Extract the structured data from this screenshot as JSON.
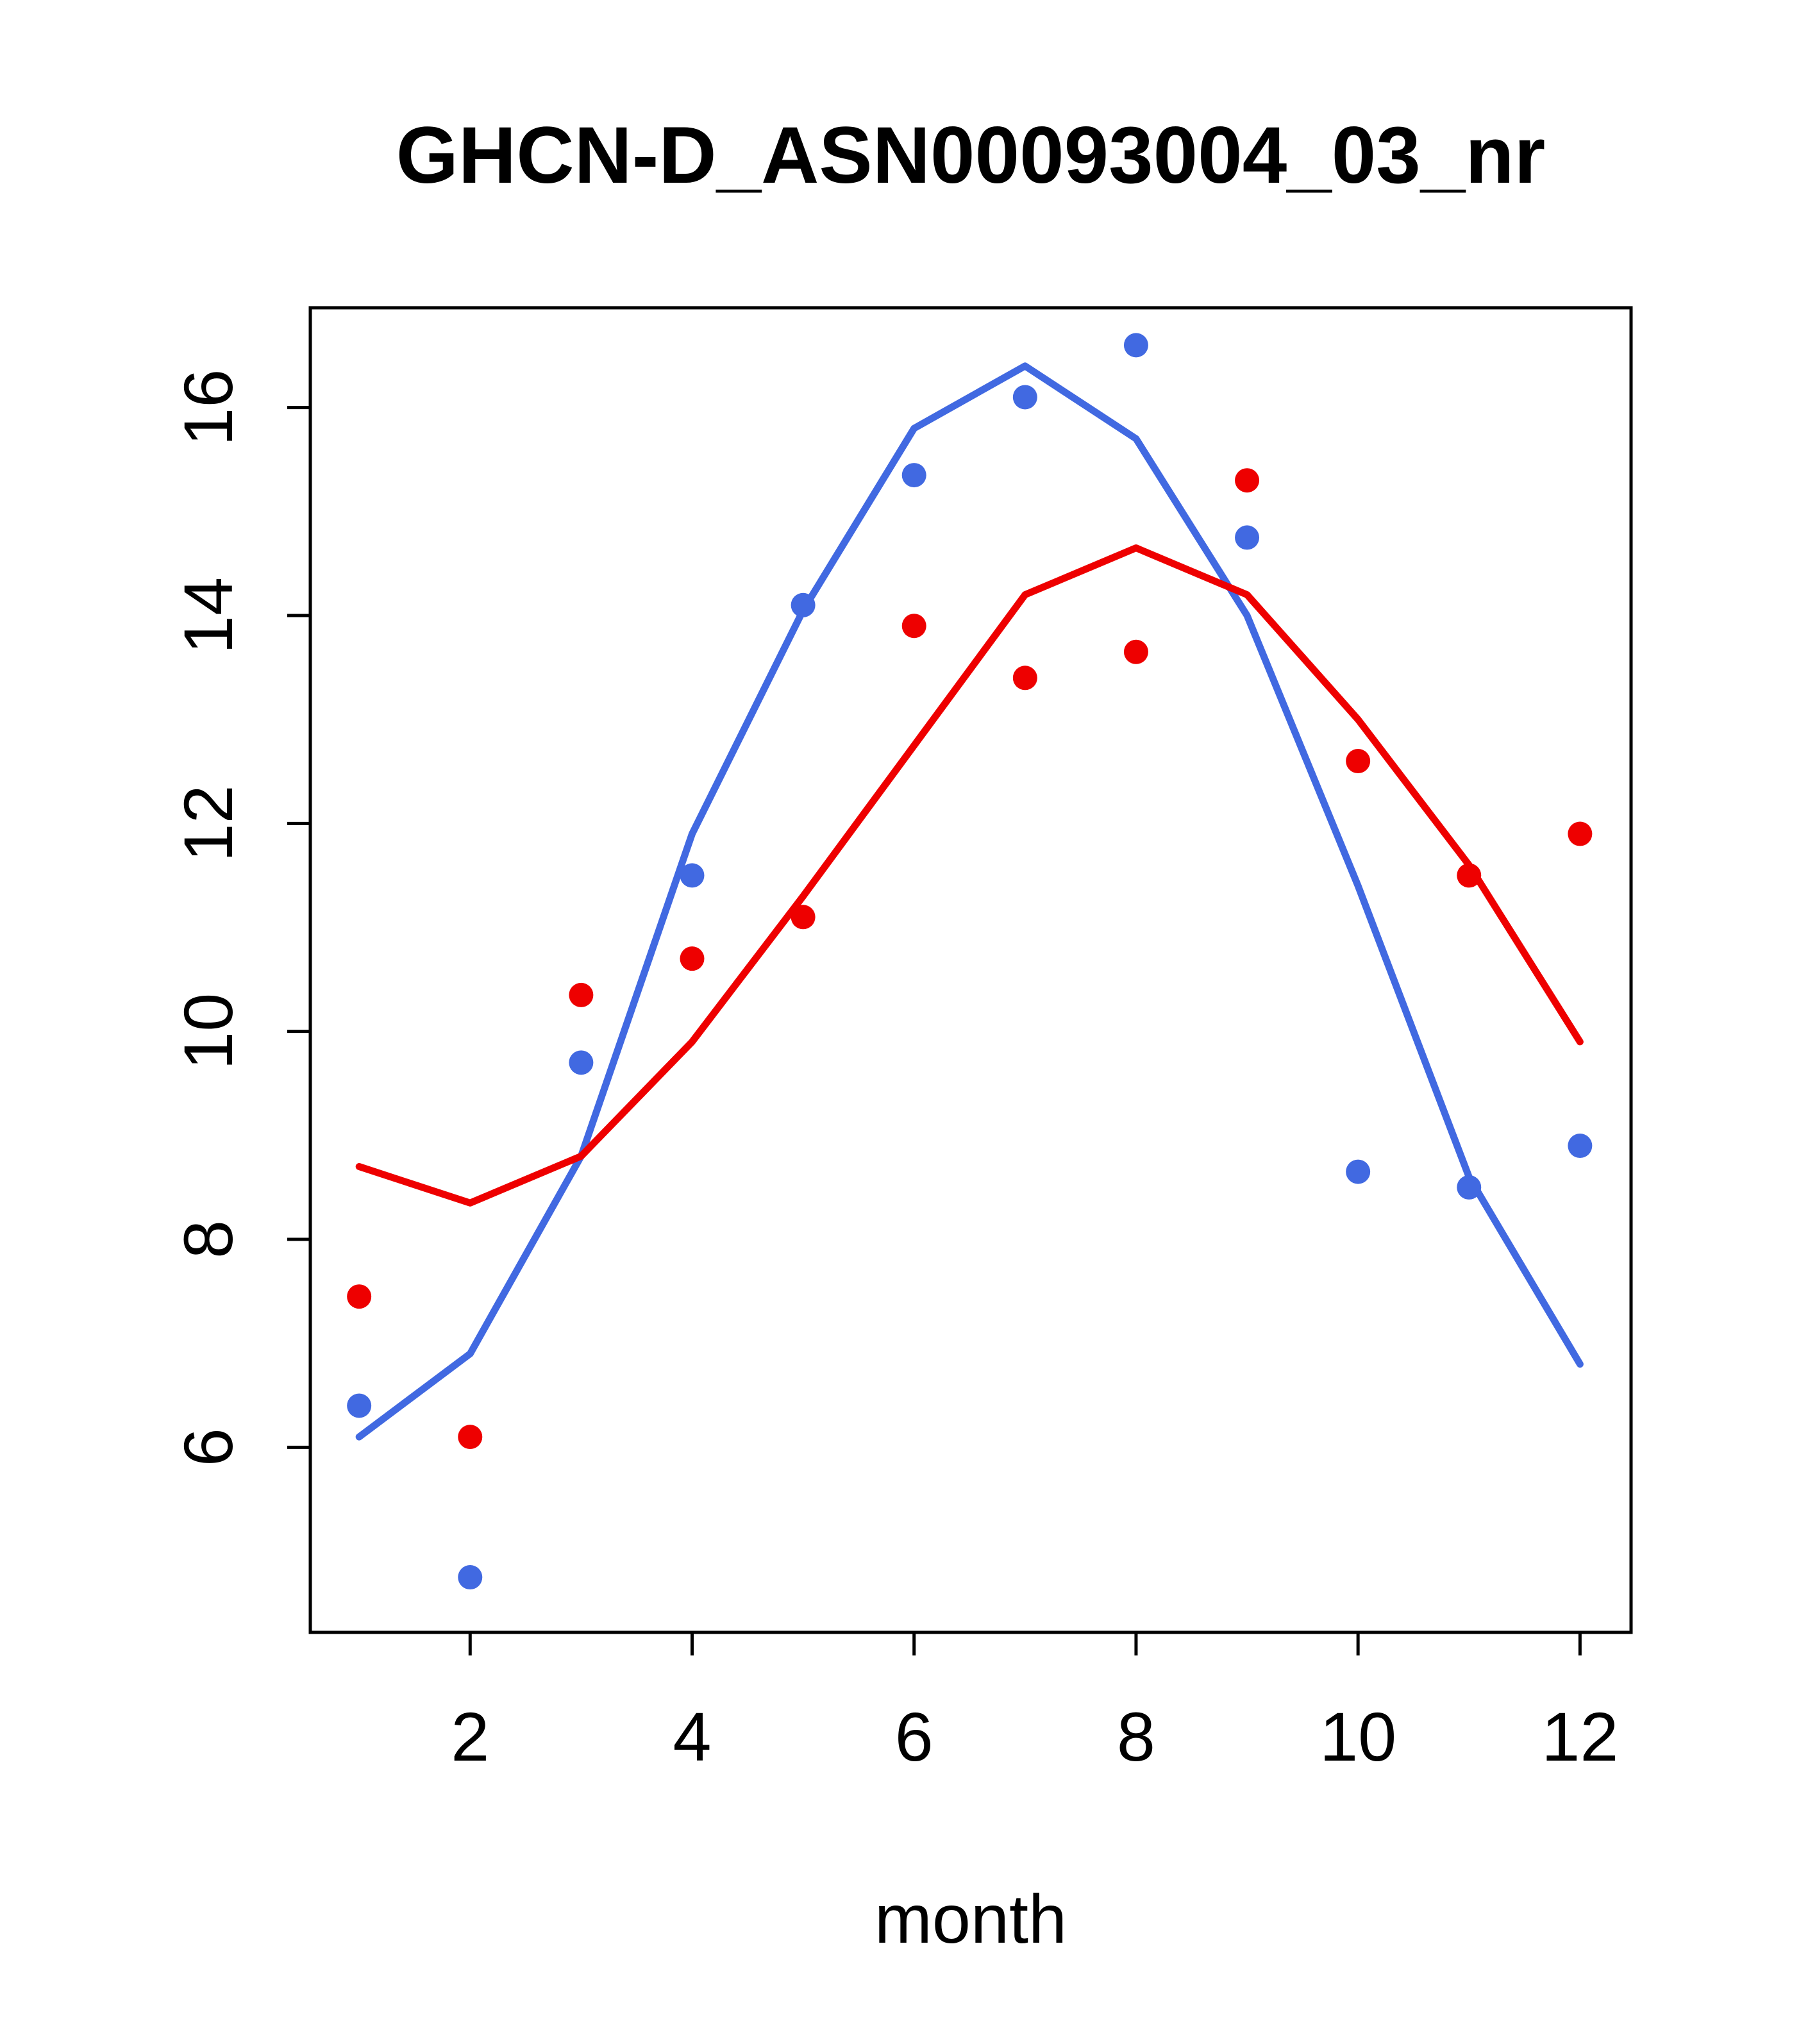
{
  "page": {
    "background": "#ffffff"
  },
  "chart_data": {
    "type": "line",
    "title": "GHCN-D_ASN00093004_03_nr",
    "xlabel": "month",
    "ylabel": "",
    "x": [
      1,
      2,
      3,
      4,
      5,
      6,
      7,
      8,
      9,
      10,
      11,
      12
    ],
    "xlim": [
      0.56,
      12.46
    ],
    "ylim": [
      4.22,
      16.96
    ],
    "xticks": [
      2,
      4,
      6,
      8,
      10,
      12
    ],
    "yticks": [
      6,
      8,
      10,
      12,
      14,
      16
    ],
    "grid": false,
    "legend": "none",
    "axis_color": "#000000",
    "series": [
      {
        "name": "series1-smoothed-line",
        "draw": "line",
        "color": "#4169E1",
        "values": [
          6.1,
          6.9,
          8.8,
          11.9,
          14.05,
          15.8,
          16.4,
          15.7,
          14.0,
          11.4,
          8.6,
          6.8
        ]
      },
      {
        "name": "series2-smoothed-line",
        "draw": "line",
        "color": "#EE0000",
        "values": [
          8.7,
          8.35,
          8.8,
          9.9,
          11.3,
          12.75,
          14.2,
          14.65,
          14.2,
          13.0,
          11.6,
          9.9
        ]
      },
      {
        "name": "series1-points",
        "draw": "scatter",
        "color": "#4169E1",
        "values": [
          6.4,
          4.75,
          9.7,
          11.5,
          14.1,
          15.35,
          16.1,
          16.6,
          14.75,
          8.65,
          8.5,
          8.9
        ]
      },
      {
        "name": "series2-points",
        "draw": "scatter",
        "color": "#EE0000",
        "values": [
          7.45,
          6.1,
          10.35,
          10.7,
          11.1,
          13.9,
          13.4,
          13.65,
          15.3,
          12.6,
          11.5,
          11.9
        ]
      }
    ]
  }
}
